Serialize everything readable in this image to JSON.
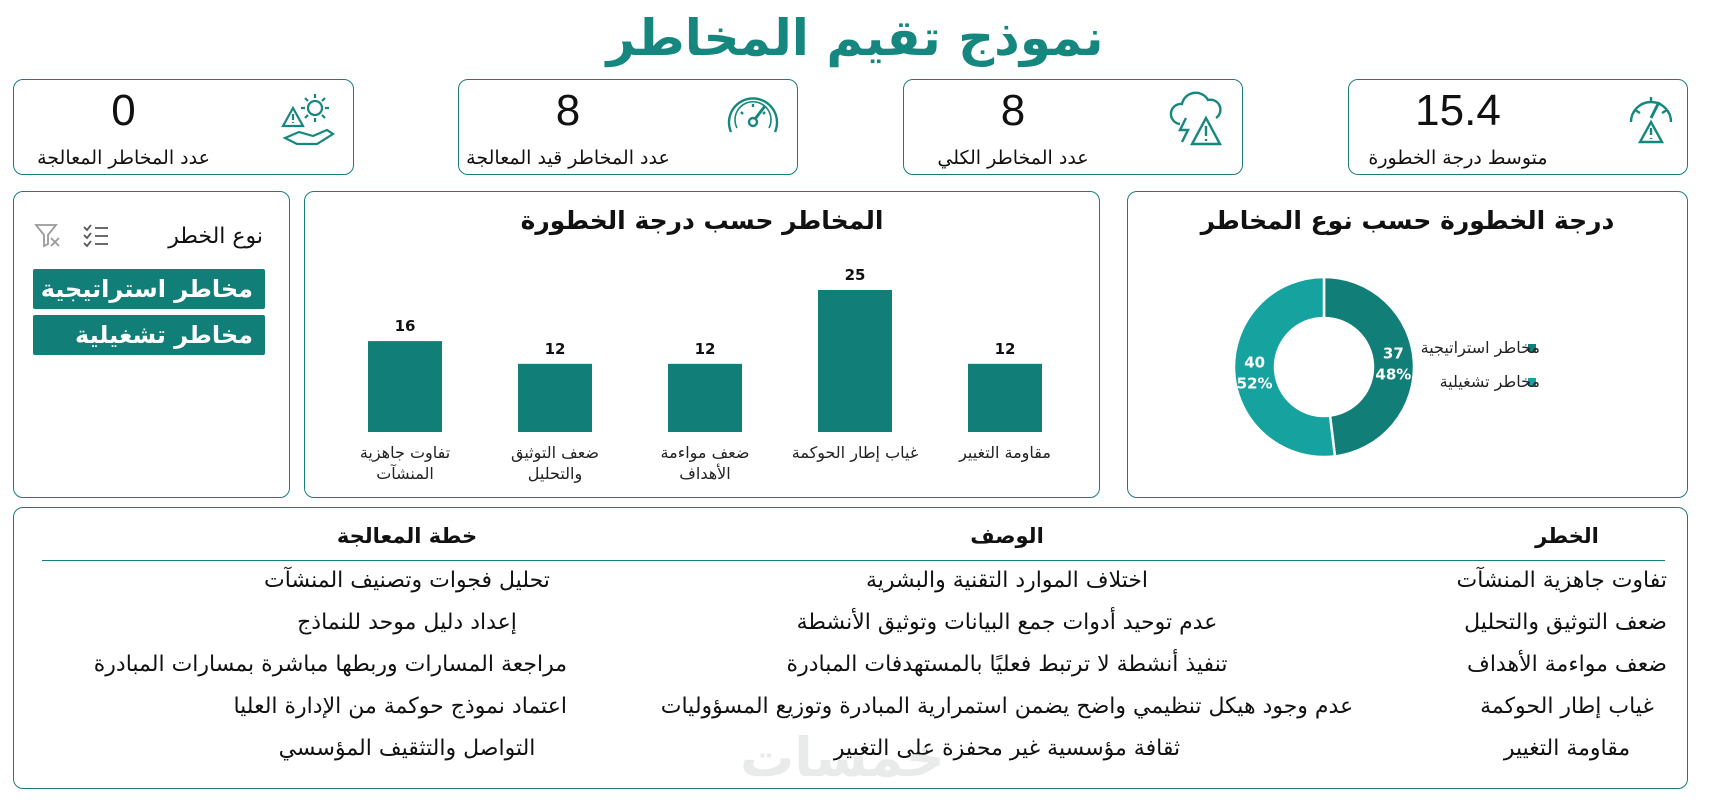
{
  "title": "نموذج تقيم المخاطر",
  "kpis": [
    {
      "value": "15.4",
      "label": "متوسط درجة الخطورة",
      "icon": "risk-gauge-icon"
    },
    {
      "value": "8",
      "label": "عدد المخاطر الكلي",
      "icon": "storm-warning-icon"
    },
    {
      "value": "8",
      "label": "عدد المخاطر قيد المعالجة",
      "icon": "speedometer-icon"
    },
    {
      "value": "0",
      "label": "عدد المخاطر المعالجة",
      "icon": "gear-warning-hand-icon"
    }
  ],
  "slicer": {
    "title": "نوع الخطر",
    "options": [
      "مخاطر استراتيجية",
      "مخاطر تشغيلية"
    ]
  },
  "colors": {
    "accent": "#117e78",
    "teal_light": "#16a3a0",
    "border": "#1a7d78"
  },
  "chart_data": [
    {
      "type": "bar",
      "title": "المخاطر حسب درجة الخطورة",
      "categories": [
        "مقاومة التغيير",
        "غياب إطار الحوكمة",
        "ضعف مواءمة الأهداف",
        "ضعف التوثيق والتحليل",
        "تفاوت جاهزية المنشآت"
      ],
      "category_lines": [
        [
          "مقاومة التغيير"
        ],
        [
          "غياب إطار الحوكمة"
        ],
        [
          "ضعف مواءمة",
          "الأهداف"
        ],
        [
          "ضعف التوثيق",
          "والتحليل"
        ],
        [
          "تفاوت جاهزية",
          "المنشآت"
        ]
      ],
      "values": [
        12,
        25,
        12,
        12,
        16
      ],
      "ylim": [
        0,
        25
      ]
    },
    {
      "type": "pie",
      "title": "درجة الخطورة حسب نوع المخاطر",
      "labels": [
        "مخاطر استراتيجية",
        "مخاطر تشغيلية"
      ],
      "values": [
        37,
        40
      ],
      "percents": [
        "48%",
        "52%"
      ],
      "colors": [
        "#117e78",
        "#16a3a0"
      ],
      "legend": "right"
    }
  ],
  "table": {
    "headers": {
      "risk": "الخطر",
      "description": "الوصف",
      "plan": "خطة المعالجة"
    },
    "rows": [
      {
        "risk": "تفاوت جاهزية المنشآت",
        "description": "اختلاف الموارد التقنية والبشرية",
        "plan": "تحليل فجوات وتصنيف المنشآت"
      },
      {
        "risk": "ضعف التوثيق والتحليل",
        "description": "عدم توحيد أدوات جمع البيانات وتوثيق الأنشطة",
        "plan": "إعداد دليل موحد للنماذج"
      },
      {
        "risk": "ضعف مواءمة الأهداف",
        "description": "تنفيذ أنشطة لا ترتبط فعليًا بالمستهدفات المبادرة",
        "plan": "مراجعة المسارات وربطها مباشرة بمسارات المبادرة"
      },
      {
        "risk": "غياب إطار الحوكمة",
        "description": "عدم وجود هيكل تنظيمي واضح يضمن استمرارية المبادرة وتوزيع المسؤوليات",
        "plan": "اعتماد نموذج حوكمة من الإدارة العليا"
      },
      {
        "risk": "مقاومة التغيير",
        "description": "ثقافة مؤسسية غير محفزة على التغيير",
        "plan": "التواصل والتثقيف المؤسسي"
      }
    ]
  },
  "watermark": "خمسات"
}
